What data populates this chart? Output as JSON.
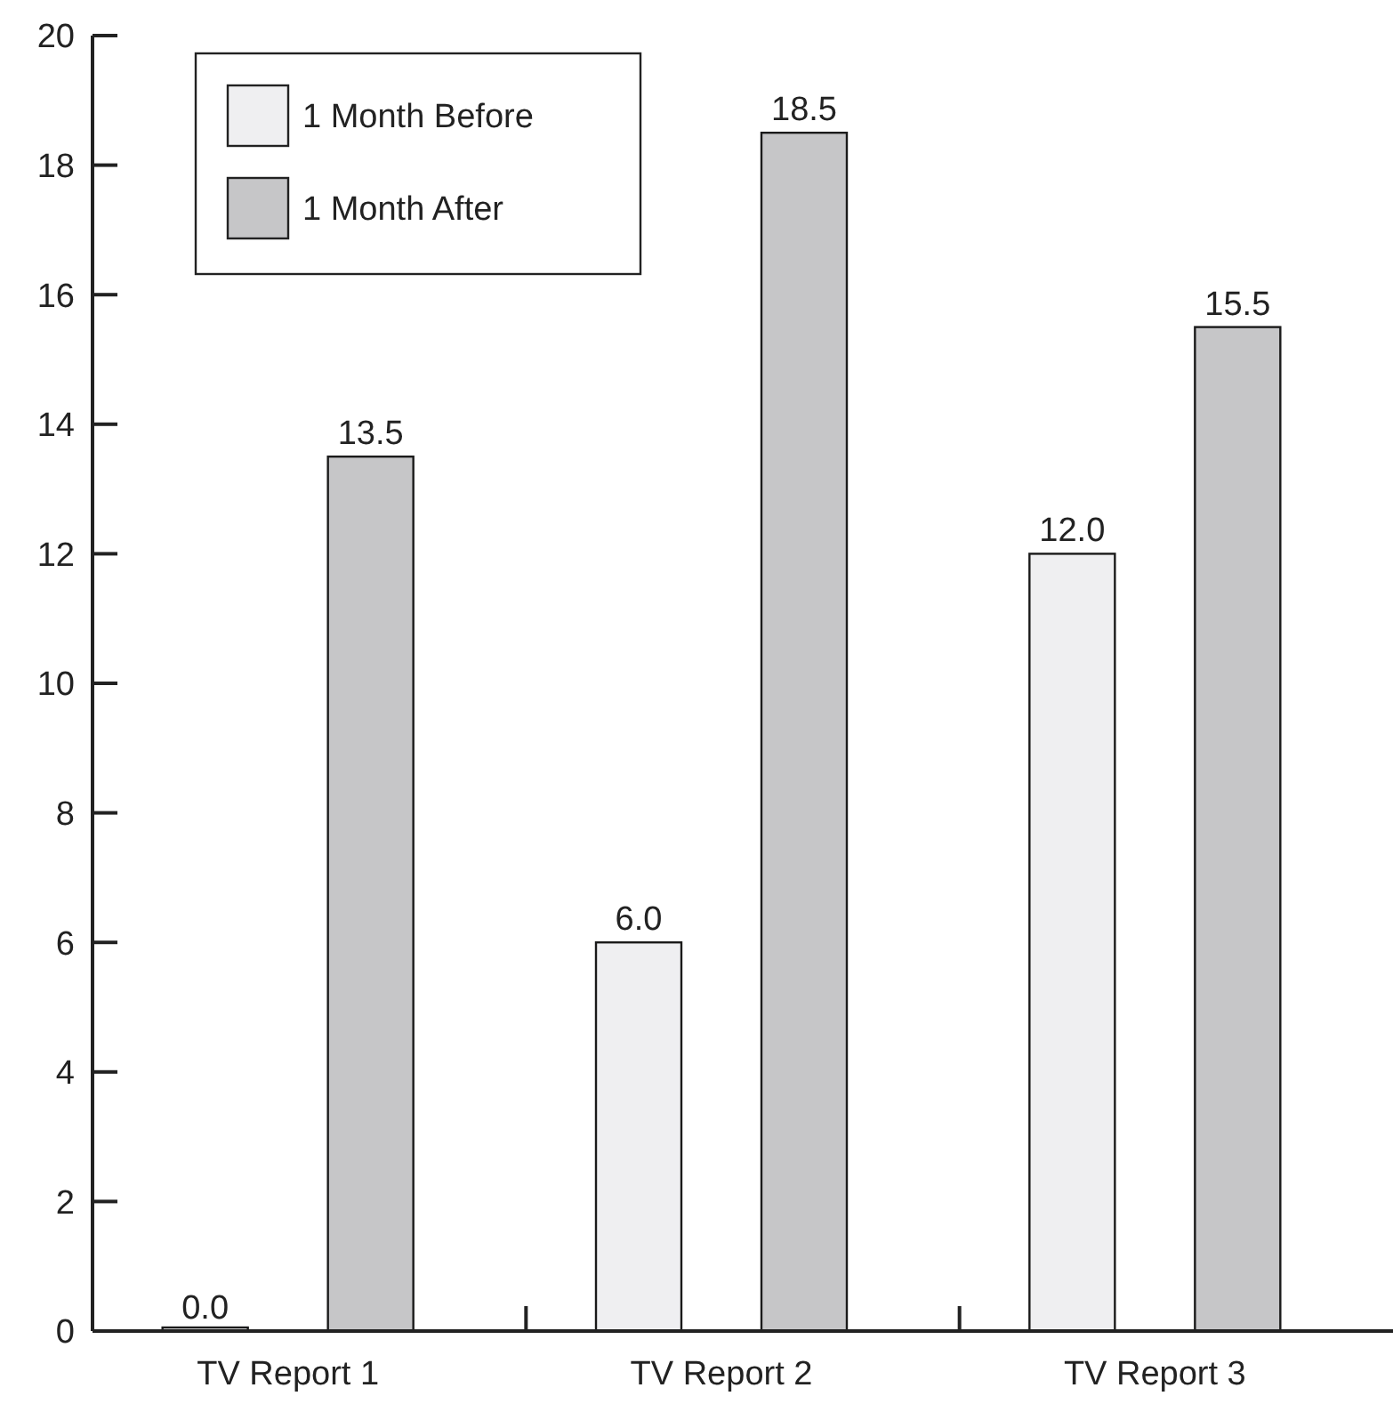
{
  "chart_data": {
    "type": "bar",
    "categories": [
      "TV Report 1",
      "TV Report 2",
      "TV Report 3"
    ],
    "series": [
      {
        "name": "1 Month Before",
        "color": "#efeff1",
        "values": [
          0,
          6,
          12
        ],
        "value_labels": [
          "0.0",
          "6.0",
          "12.0"
        ]
      },
      {
        "name": "1 Month After",
        "color": "#c6c6c8",
        "values": [
          13.5,
          18.5,
          15.5
        ],
        "value_labels": [
          "13.5",
          "18.5",
          "15.5"
        ]
      }
    ],
    "ylim": [
      0,
      20
    ],
    "yticks": [
      0,
      2,
      4,
      6,
      8,
      10,
      12,
      14,
      16,
      18,
      20
    ],
    "legend": "top left",
    "grid": false
  }
}
